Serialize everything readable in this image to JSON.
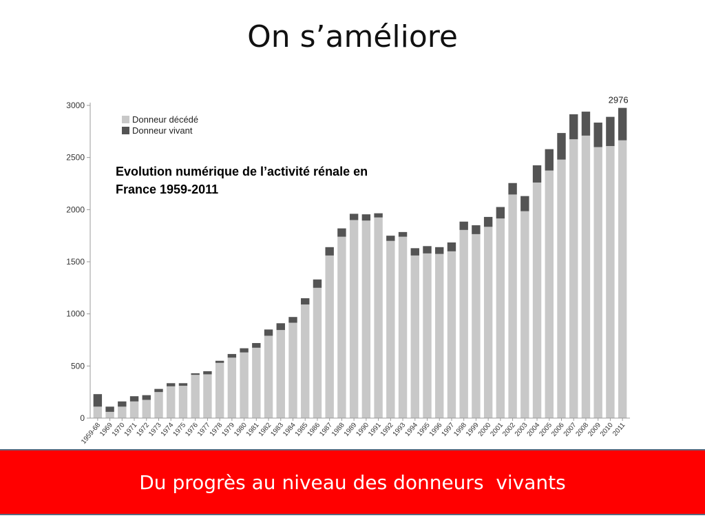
{
  "slide": {
    "title": "On s’améliore",
    "banner": "Du progrès au niveau des donneurs  vivants"
  },
  "colors": {
    "deceased": "#c8c8c8",
    "living": "#545454",
    "banner": "#ff0000",
    "banner_text": "#ffffff"
  },
  "chart_data": {
    "type": "bar",
    "stacked": true,
    "title": "Evolution numérique de l’activité rénale en France 1959-2011",
    "xlabel": "",
    "ylabel": "",
    "ylim": [
      0,
      3000
    ],
    "yticks": [
      "0",
      "500",
      "1000",
      "1500",
      "2000",
      "2500",
      "3000"
    ],
    "legend_position": "top-left",
    "grid": false,
    "categories": [
      "1959-68",
      "1969",
      "1970",
      "1971",
      "1972",
      "1973",
      "1974",
      "1975",
      "1976",
      "1977",
      "1978",
      "1979",
      "1980",
      "1981",
      "1982",
      "1983",
      "1984",
      "1985",
      "1986",
      "1987",
      "1988",
      "1989",
      "1990",
      "1991",
      "1992",
      "1993",
      "1994",
      "1995",
      "1996",
      "1997",
      "1998",
      "1999",
      "2000",
      "2001",
      "2002",
      "2003",
      "2004",
      "2005",
      "2006",
      "2007",
      "2008",
      "2009",
      "2010",
      "2011"
    ],
    "series": [
      {
        "name": "Donneur décédé",
        "color": "#c8c8c8",
        "values": [
          110,
          60,
          110,
          160,
          175,
          250,
          305,
          310,
          415,
          420,
          530,
          580,
          630,
          675,
          790,
          845,
          915,
          1090,
          1250,
          1560,
          1740,
          1900,
          1895,
          1925,
          1700,
          1740,
          1560,
          1580,
          1575,
          1600,
          1805,
          1765,
          1835,
          1915,
          2145,
          1985,
          2260,
          2375,
          2480,
          2675,
          2710,
          2600,
          2610,
          2665
        ]
      },
      {
        "name": "Donneur vivant",
        "color": "#545454",
        "values": [
          120,
          50,
          50,
          50,
          45,
          30,
          30,
          25,
          15,
          30,
          20,
          35,
          40,
          45,
          60,
          65,
          55,
          60,
          80,
          80,
          80,
          60,
          60,
          40,
          50,
          45,
          70,
          70,
          65,
          85,
          80,
          85,
          95,
          110,
          110,
          145,
          165,
          205,
          255,
          240,
          230,
          235,
          280,
          311
        ]
      }
    ],
    "annotations": [
      {
        "category": "2011",
        "text": "2976"
      }
    ]
  }
}
